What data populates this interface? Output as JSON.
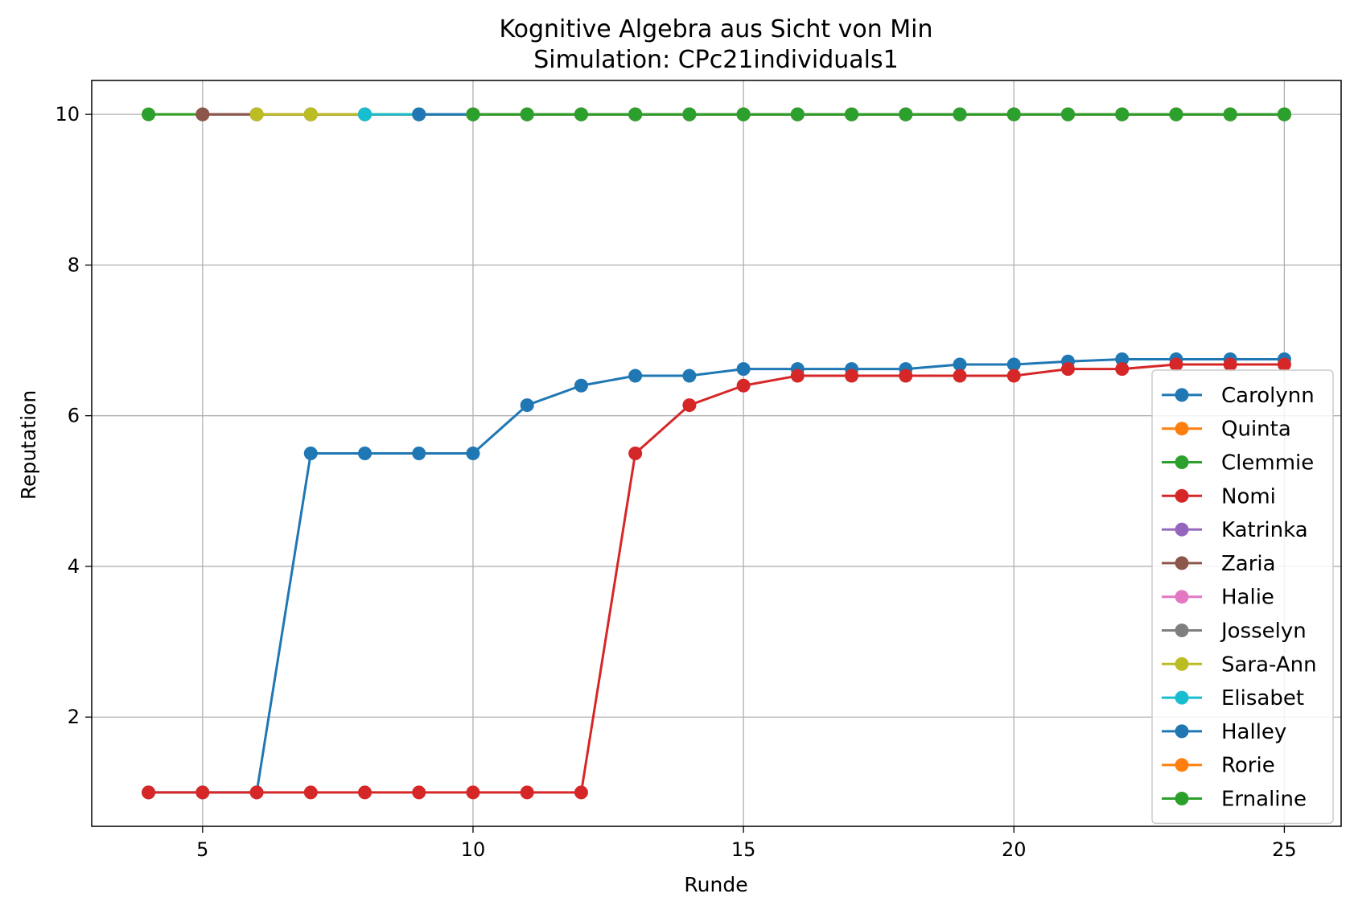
{
  "chart_data": {
    "type": "line",
    "title": "Kognitive Algebra aus Sicht von Min",
    "subtitle": "Simulation: CPc21individuals1",
    "xlabel": "Runde",
    "ylabel": "Reputation",
    "xlim": [
      2.95,
      26.05
    ],
    "ylim": [
      0.55,
      10.45
    ],
    "xticks": [
      5,
      10,
      15,
      20,
      25
    ],
    "yticks": [
      2,
      4,
      6,
      8,
      10
    ],
    "grid": true,
    "legend_position": "lower right",
    "series": [
      {
        "name": "Carolynn",
        "color": "#1f77b4",
        "x": [
          4,
          5,
          6,
          7,
          8,
          9,
          10,
          11,
          12,
          13,
          14,
          15,
          16,
          17,
          18,
          19,
          20,
          21,
          22,
          23,
          24,
          25
        ],
        "y": [
          1,
          1,
          1,
          5.5,
          5.5,
          5.5,
          5.5,
          6.14,
          6.4,
          6.53,
          6.53,
          6.62,
          6.62,
          6.62,
          6.62,
          6.68,
          6.68,
          6.72,
          6.75,
          6.75,
          6.75,
          6.75
        ]
      },
      {
        "name": "Quinta",
        "color": "#ff7f0e",
        "x": [
          4,
          5,
          6,
          7,
          8,
          9,
          10,
          11,
          12,
          13,
          14,
          15,
          16,
          17,
          18,
          19,
          20,
          21,
          22,
          23,
          24,
          25
        ],
        "y": [
          10,
          10,
          10,
          10,
          10,
          10,
          10,
          10,
          10,
          10,
          10,
          10,
          10,
          10,
          10,
          10,
          10,
          10,
          10,
          10,
          10,
          10
        ]
      },
      {
        "name": "Clemmie",
        "color": "#2ca02c",
        "x": [
          4,
          5,
          6,
          7,
          8,
          9,
          10,
          11,
          12,
          13,
          14,
          15,
          16,
          17,
          18,
          19,
          20,
          21,
          22,
          23,
          24,
          25
        ],
        "y": [
          10,
          10,
          10,
          10,
          10,
          10,
          10,
          10,
          10,
          10,
          10,
          10,
          10,
          10,
          10,
          10,
          10,
          10,
          10,
          10,
          10,
          10
        ]
      },
      {
        "name": "Nomi",
        "color": "#d62728",
        "x": [
          4,
          5,
          6,
          7,
          8,
          9,
          10,
          11,
          12,
          13,
          14,
          15,
          16,
          17,
          18,
          19,
          20,
          21,
          22,
          23,
          24,
          25
        ],
        "y": [
          1,
          1,
          1,
          1,
          1,
          1,
          1,
          1,
          1,
          5.5,
          6.14,
          6.4,
          6.53,
          6.53,
          6.53,
          6.53,
          6.53,
          6.62,
          6.62,
          6.68,
          6.68,
          6.68
        ]
      },
      {
        "name": "Katrinka",
        "color": "#9467bd",
        "x": [
          5,
          6,
          7,
          8,
          9,
          10,
          11,
          12,
          13,
          14,
          15,
          16,
          17,
          18,
          19,
          20,
          21,
          22,
          23,
          24,
          25
        ],
        "y": [
          10,
          10,
          10,
          10,
          10,
          10,
          10,
          10,
          10,
          10,
          10,
          10,
          10,
          10,
          10,
          10,
          10,
          10,
          10,
          10,
          10
        ]
      },
      {
        "name": "Zaria",
        "color": "#8c564b",
        "x": [
          5,
          6,
          7,
          8,
          9,
          10,
          11,
          12,
          13,
          14,
          15,
          16,
          17,
          18,
          19,
          20,
          21,
          22,
          23,
          24,
          25
        ],
        "y": [
          10,
          10,
          10,
          10,
          10,
          10,
          10,
          10,
          10,
          10,
          10,
          10,
          10,
          10,
          10,
          10,
          10,
          10,
          10,
          10,
          10
        ]
      },
      {
        "name": "Halie",
        "color": "#e377c2",
        "x": [
          6,
          7,
          8,
          9,
          10,
          11,
          12,
          13,
          14,
          15,
          16,
          17,
          18,
          19,
          20,
          21,
          22,
          23,
          24,
          25
        ],
        "y": [
          10,
          10,
          10,
          10,
          10,
          10,
          10,
          10,
          10,
          10,
          10,
          10,
          10,
          10,
          10,
          10,
          10,
          10,
          10,
          10
        ]
      },
      {
        "name": "Josselyn",
        "color": "#7f7f7f",
        "x": [
          6,
          7,
          8,
          9,
          10,
          11,
          12,
          13,
          14,
          15,
          16,
          17,
          18,
          19,
          20,
          21,
          22,
          23,
          24,
          25
        ],
        "y": [
          10,
          10,
          10,
          10,
          10,
          10,
          10,
          10,
          10,
          10,
          10,
          10,
          10,
          10,
          10,
          10,
          10,
          10,
          10,
          10
        ]
      },
      {
        "name": "Sara-Ann",
        "color": "#bcbd22",
        "x": [
          6,
          7,
          8,
          9,
          10,
          11,
          12,
          13,
          14,
          15,
          16,
          17,
          18,
          19,
          20,
          21,
          22,
          23,
          24,
          25
        ],
        "y": [
          10,
          10,
          10,
          10,
          10,
          10,
          10,
          10,
          10,
          10,
          10,
          10,
          10,
          10,
          10,
          10,
          10,
          10,
          10,
          10
        ]
      },
      {
        "name": "Elisabet",
        "color": "#17becf",
        "x": [
          8,
          9,
          10,
          11,
          12,
          13,
          14,
          15,
          16,
          17,
          18,
          19,
          20,
          21,
          22,
          23,
          24,
          25
        ],
        "y": [
          10,
          10,
          10,
          10,
          10,
          10,
          10,
          10,
          10,
          10,
          10,
          10,
          10,
          10,
          10,
          10,
          10,
          10
        ]
      },
      {
        "name": "Halley",
        "color": "#1f77b4",
        "x": [
          9,
          10,
          11,
          12,
          13,
          14,
          15,
          16,
          17,
          18,
          19,
          20,
          21,
          22,
          23,
          24,
          25
        ],
        "y": [
          10,
          10,
          10,
          10,
          10,
          10,
          10,
          10,
          10,
          10,
          10,
          10,
          10,
          10,
          10,
          10,
          10
        ]
      },
      {
        "name": "Rorie",
        "color": "#ff7f0e",
        "x": [
          10,
          11,
          12,
          13,
          14,
          15,
          16,
          17,
          18,
          19,
          20,
          21,
          22,
          23,
          24,
          25
        ],
        "y": [
          10,
          10,
          10,
          10,
          10,
          10,
          10,
          10,
          10,
          10,
          10,
          10,
          10,
          10,
          10,
          10
        ]
      },
      {
        "name": "Ernaline",
        "color": "#2ca02c",
        "x": [
          10,
          11,
          12,
          13,
          14,
          15,
          16,
          17,
          18,
          19,
          20,
          21,
          22,
          23,
          24,
          25
        ],
        "y": [
          10,
          10,
          10,
          10,
          10,
          10,
          10,
          10,
          10,
          10,
          10,
          10,
          10,
          10,
          10,
          10
        ]
      }
    ]
  }
}
